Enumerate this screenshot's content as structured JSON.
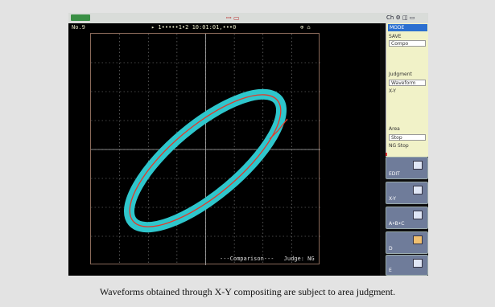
{
  "window": {
    "title_mark": "ꟷ  ▭",
    "top_right": "Ch  ⚙  ◫  ▭"
  },
  "infobar": {
    "left": "No.9",
    "center": "▸ 1•••••1•2  10:01:01,•••0",
    "right": "⊕ ⌂"
  },
  "plot": {
    "footer_mode": "---Comparison---",
    "footer_judge": "Judge: NG"
  },
  "side_panel": {
    "header": "MODE",
    "label1": "SAVE",
    "field1": "Compo",
    "label2": "Judgment",
    "field2": "Waveform",
    "note2": "X-Y",
    "label3": "Area",
    "field3": "Stop",
    "note3": "NG Stop"
  },
  "side_buttons": [
    {
      "label": "EDIT",
      "icon": "edit-icon"
    },
    {
      "label": "X-Y",
      "icon": "xy-icon"
    },
    {
      "label": "A•B•C",
      "icon": "area-icon"
    },
    {
      "label": "D",
      "icon": "folder-icon"
    },
    {
      "label": "E",
      "icon": "save-icon"
    }
  ],
  "caption": "Waveforms obtained through X-Y compositing are subject to area judgment.",
  "colors": {
    "background": "#e3e3e3",
    "screen": "#000000",
    "band": "#2fc6cc",
    "trace": "#e23a2a",
    "grid": "#8a8a8a"
  }
}
